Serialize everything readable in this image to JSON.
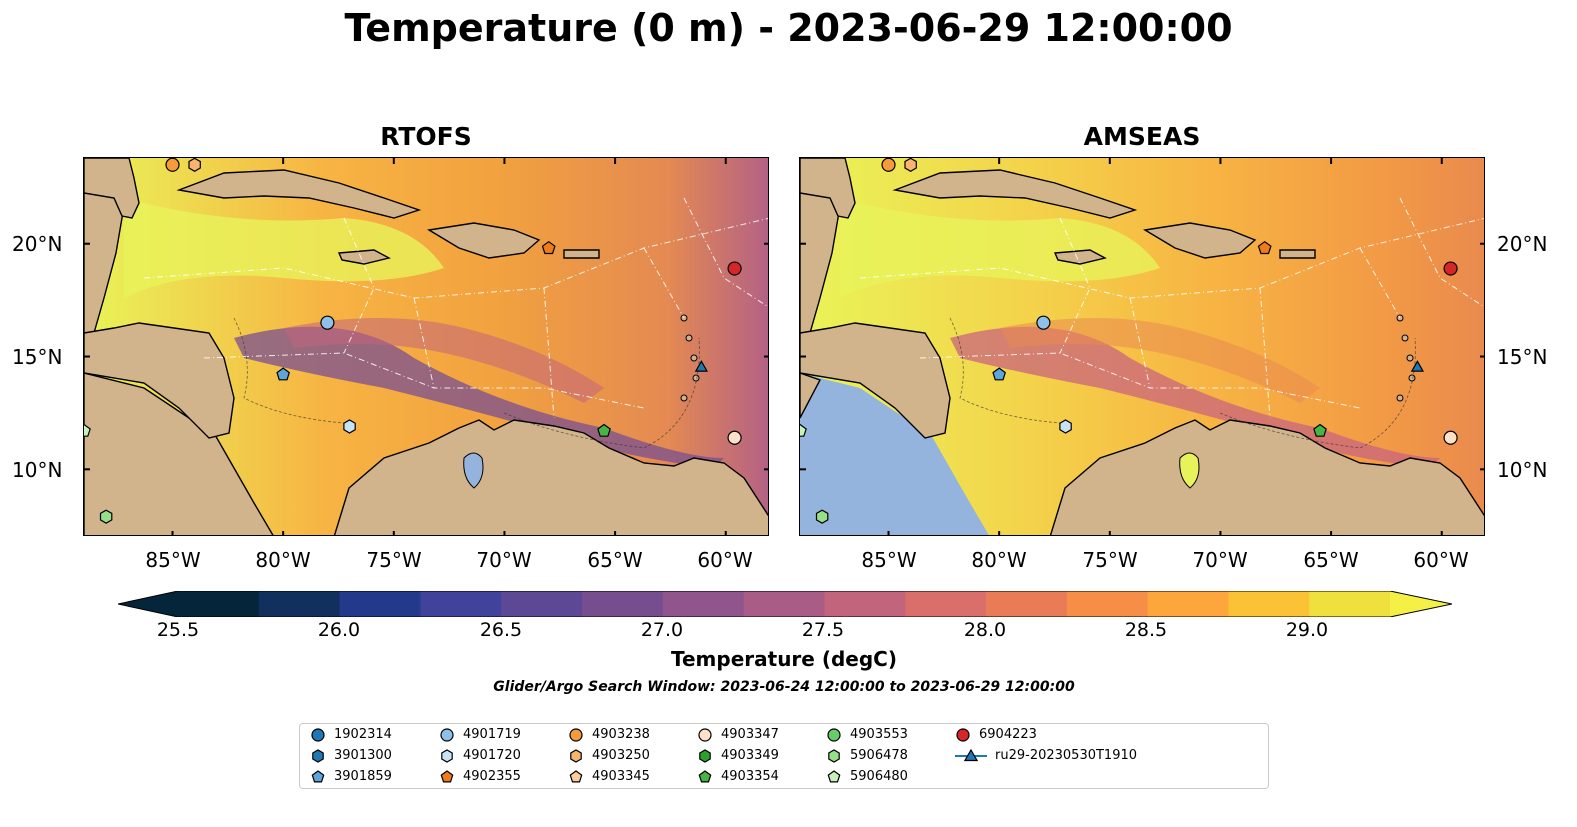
{
  "title": "Temperature (0 m) - 2023-06-29 12:00:00",
  "panels": [
    {
      "title": "RTOFS"
    },
    {
      "title": "AMSEAS"
    }
  ],
  "lat_labels": [
    "20°N",
    "15°N",
    "10°N"
  ],
  "lon_labels": [
    "85°W",
    "80°W",
    "75°W",
    "70°W",
    "65°W",
    "60°W"
  ],
  "colorbar": {
    "label": "Temperature (degC)",
    "ticks": [
      "25.5",
      "26.0",
      "26.5",
      "27.0",
      "27.5",
      "28.0",
      "28.5",
      "29.0"
    ],
    "colors": [
      "#04253a",
      "#12305e",
      "#233a8c",
      "#41429b",
      "#5c4894",
      "#764e8f",
      "#8f558c",
      "#a95c86",
      "#c2647c",
      "#d96e6a",
      "#ea7b57",
      "#f68e47",
      "#fca63b",
      "#fbc236",
      "#efe03e"
    ],
    "range": [
      25.5,
      29.25
    ],
    "extend": "both"
  },
  "subtitle": "Glider/Argo Search Window: 2023-06-24 12:00:00 to 2023-06-29 12:00:00",
  "colors": {
    "land": "#d2b48c",
    "water_pacific": "#94b4de",
    "warm": "#e7f458",
    "mid": "#f7ad3c",
    "cool": "#c9637e"
  },
  "legend": [
    {
      "label": "1902314",
      "marker": "circle",
      "color": "#1f77b4"
    },
    {
      "label": "3901300",
      "marker": "hexagon",
      "color": "#1f77b4"
    },
    {
      "label": "3901859",
      "marker": "pentagon",
      "color": "#5da5da"
    },
    {
      "label": "4901719",
      "marker": "circle",
      "color": "#8fc1e8"
    },
    {
      "label": "4901720",
      "marker": "hexagon",
      "color": "#c9e3f6"
    },
    {
      "label": "4902355",
      "marker": "pentagon",
      "color": "#f07c19"
    },
    {
      "label": "4903238",
      "marker": "circle",
      "color": "#f79a3c"
    },
    {
      "label": "4903250",
      "marker": "hexagon",
      "color": "#f9b570"
    },
    {
      "label": "4903345",
      "marker": "pentagon",
      "color": "#fbcd9f"
    },
    {
      "label": "4903347",
      "marker": "circle",
      "color": "#fde0c8"
    },
    {
      "label": "4903349",
      "marker": "hexagon",
      "color": "#2ca02c"
    },
    {
      "label": "4903354",
      "marker": "pentagon",
      "color": "#45b545"
    },
    {
      "label": "4903553",
      "marker": "circle",
      "color": "#68cb68"
    },
    {
      "label": "5906478",
      "marker": "hexagon",
      "color": "#98df8a"
    },
    {
      "label": "5906480",
      "marker": "pentagon",
      "color": "#c7f2bd"
    },
    {
      "label": "6904223",
      "marker": "circle",
      "color": "#d62728"
    },
    {
      "label": "ru29-20230530T1910",
      "marker": "triangle",
      "color": "#1f77b4"
    }
  ],
  "map_points": [
    {
      "id": "4903238",
      "lon": -85.0,
      "lat": 23.5
    },
    {
      "id": "4903250",
      "lon": -84.0,
      "lat": 23.5
    },
    {
      "id": "4902355",
      "lon": -68.0,
      "lat": 19.8
    },
    {
      "id": "6904223",
      "lon": -59.6,
      "lat": 18.9
    },
    {
      "id": "4901719",
      "lon": -78.0,
      "lat": 16.5
    },
    {
      "id": "3901859",
      "lon": -80.0,
      "lat": 14.2
    },
    {
      "id": "ru29-20230530T1910",
      "lon": -61.1,
      "lat": 14.5
    },
    {
      "id": "4901720",
      "lon": -77.0,
      "lat": 11.9
    },
    {
      "id": "4903354",
      "lon": -65.5,
      "lat": 11.7
    },
    {
      "id": "4903347",
      "lon": -59.6,
      "lat": 11.4
    },
    {
      "id": "5906480",
      "lon": -89.0,
      "lat": 11.7
    },
    {
      "id": "5906478",
      "lon": -88.0,
      "lat": 7.9
    }
  ]
}
